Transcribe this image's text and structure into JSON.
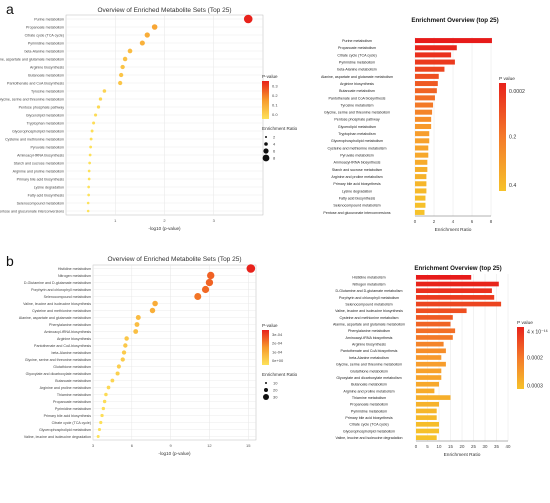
{
  "figure": {
    "panel_letters": [
      "a",
      "b"
    ]
  },
  "colors": {
    "dot_low": "#fde25a",
    "dot_high": "#e8221b",
    "bar_low": "#f6c22a",
    "bar_high": "#e8221b",
    "grid": "#e6e6e6",
    "axis": "#666666"
  },
  "chart_data": [
    {
      "panel": "a",
      "type": "scatter",
      "title": "Overview of Enriched Metabolite Sets (Top 25)",
      "xlabel": "-log10 (p-value)",
      "xlim": [
        0,
        4
      ],
      "xticks": [
        1,
        2,
        3
      ],
      "grid": true,
      "categories": [
        "Purine metabolism",
        "Propanoate metabolism",
        "Citrate cycle (TCA cycle)",
        "Pyrimidine metabolism",
        "beta-Alanine metabolism",
        "Alanine, aspartate and glutamate metabolism",
        "Arginine biosynthesis",
        "Butanoate metabolism",
        "Pantothenate and CoA biosynthesis",
        "Tyrosine metabolism",
        "Glycine, serine and threonine metabolism",
        "Pentose phosphate pathway",
        "Glycerolipid metabolism",
        "Tryptophan metabolism",
        "Glycerophospholipid metabolism",
        "Cysteine and methionine metabolism",
        "Pyruvate metabolism",
        "Aminoacyl-tRNA biosynthesis",
        "Starch and sucrose metabolism",
        "Arginine and proline metabolism",
        "Primary bile acid biosynthesis",
        "Lysine degradation",
        "Fatty acid biosynthesis",
        "Selenocompound metabolism",
        "Pentose and glucuronate interconversions"
      ],
      "x": [
        3.7,
        1.8,
        1.65,
        1.55,
        1.3,
        1.2,
        1.15,
        1.12,
        1.1,
        0.78,
        0.7,
        0.66,
        0.6,
        0.56,
        0.53,
        0.51,
        0.5,
        0.49,
        0.48,
        0.47,
        0.47,
        0.46,
        0.46,
        0.45,
        0.45
      ],
      "size_legend": {
        "title": "Enrichment Ratio",
        "values": [
          2,
          4,
          6,
          8
        ]
      },
      "color_legend": {
        "title": "P-value",
        "ticks": [
          "0.3",
          "0.2",
          "0.1",
          "0.0"
        ]
      }
    },
    {
      "panel": "a",
      "type": "bar",
      "title": "Enrichment Overview (top 25)",
      "xlabel": "Enrichment Ratio",
      "xlim": [
        0,
        8
      ],
      "xticks": [
        0,
        2,
        4,
        6,
        8
      ],
      "grid": true,
      "categories": [
        "Purine metabolism",
        "Propanoate metabolism",
        "Citrate cycle (TCA cycle)",
        "Pyrimidine metabolism",
        "beta-Alanine metabolism",
        "Alanine, aspartate and glutamate metabolism",
        "Arginine biosynthesis",
        "Butanoate metabolism",
        "Pantothenate and CoA biosynthesis",
        "Tyrosine metabolism",
        "Glycine, serine and threonine metabolism",
        "Pentose phosphate pathway",
        "Glycerolipid metabolism",
        "Tryptophan metabolism",
        "Glycerophospholipid metabolism",
        "Cysteine and methionine metabolism",
        "Pyruvate metabolism",
        "Aminoacyl-tRNA biosynthesis",
        "Starch and sucrose metabolism",
        "Arginine and proline metabolism",
        "Primary bile acid biosynthesis",
        "Lysine degradation",
        "Fatty acid biosynthesis",
        "Selenocompound metabolism",
        "Pentose and glucuronate interconversions"
      ],
      "values": [
        8.1,
        4.4,
        3.8,
        4.2,
        3.1,
        2.5,
        2.4,
        2.3,
        2.1,
        1.9,
        1.8,
        1.7,
        1.7,
        1.5,
        1.5,
        1.4,
        1.4,
        1.3,
        1.3,
        1.2,
        1.2,
        1.2,
        1.1,
        1.1,
        1.0
      ],
      "color_legend": {
        "title": "P value",
        "ticks": [
          "0.0002",
          "0.2",
          "0.4"
        ]
      }
    },
    {
      "panel": "b",
      "type": "scatter",
      "title": "Overview of Enriched Metabolite Sets (Top 25)",
      "xlabel": "-log10 (p-value)",
      "xlim": [
        3,
        15.6
      ],
      "xticks": [
        3,
        6,
        9,
        12,
        15
      ],
      "grid": true,
      "categories": [
        "Histidine metabolism",
        "Nitrogen metabolism",
        "D-Glutamine and D-glutamate metabolism",
        "Porphyrin and chlorophyll metabolism",
        "Selenocompound metabolism",
        "Valine, leucine and isoleucine biosynthesis",
        "Cysteine and methionine metabolism",
        "Alanine, aspartate and glutamate metabolism",
        "Phenylalanine metabolism",
        "Aminoacyl-tRNA biosynthesis",
        "Arginine biosynthesis",
        "Pantothenate and CoA biosynthesis",
        "beta-Alanine metabolism",
        "Glycine, serine and threonine metabolism",
        "Glutathione metabolism",
        "Glyoxylate and dicarboxylate metabolism",
        "Butanoate metabolism",
        "Arginine and proline metabolism",
        "Thiamine metabolism",
        "Propanoate metabolism",
        "Pyrimidine metabolism",
        "Primary bile acid biosynthesis",
        "Citrate cycle (TCA cycle)",
        "Glycerophospholipid metabolism",
        "Valine, leucine and isoleucine degradation"
      ],
      "x": [
        15.2,
        12.1,
        12.0,
        11.7,
        11.1,
        7.8,
        7.6,
        6.5,
        6.4,
        6.3,
        5.6,
        5.5,
        5.4,
        5.3,
        5.0,
        4.9,
        4.5,
        4.2,
        4.0,
        3.9,
        3.8,
        3.7,
        3.6,
        3.5,
        3.4
      ],
      "size_legend": {
        "title": "Enrichment Ratio",
        "values": [
          10,
          20,
          30
        ]
      },
      "color_legend": {
        "title": "P-value",
        "ticks": [
          "3e-04",
          "2e-04",
          "1e-04",
          "0e+00"
        ]
      }
    },
    {
      "panel": "b",
      "type": "bar",
      "title": "Enrichment Overview (top 25)",
      "xlabel": "Enrichment Ratio",
      "xlim": [
        0,
        40
      ],
      "xticks": [
        0,
        5,
        10,
        15,
        20,
        25,
        30,
        35,
        40
      ],
      "grid": true,
      "categories": [
        "Histidine metabolism",
        "Nitrogen metabolism",
        "D-Glutamine and D-glutamate metabolism",
        "Porphyrin and chlorophyll metabolism",
        "Selenocompound metabolism",
        "Valine, leucine and isoleucine biosynthesis",
        "Cysteine and methionine metabolism",
        "Alanine, aspartate and glutamate metabolism",
        "Phenylalanine metabolism",
        "Aminoacyl-tRNA biosynthesis",
        "Arginine biosynthesis",
        "Pantothenate and CoA biosynthesis",
        "beta-Alanine metabolism",
        "Glycine, serine and threonine metabolism",
        "Glutathione metabolism",
        "Glyoxylate and dicarboxylate metabolism",
        "Butanoate metabolism",
        "Arginine and proline metabolism",
        "Thiamine metabolism",
        "Propanoate metabolism",
        "Pyrimidine metabolism",
        "Primary bile acid biosynthesis",
        "Citrate cycle (TCA cycle)",
        "Glycerophospholipid metabolism",
        "Valine, leucine and isoleucine degradation"
      ],
      "values": [
        24,
        36,
        33,
        34,
        37,
        22,
        16,
        15,
        17,
        16,
        12,
        13,
        11,
        13,
        11,
        11,
        10,
        8,
        15,
        10,
        9,
        9,
        10,
        10,
        9
      ],
      "color_legend": {
        "title": "P value",
        "ticks": [
          "4 x 10⁻¹⁶",
          "0.0002",
          "0.0003"
        ]
      }
    }
  ]
}
